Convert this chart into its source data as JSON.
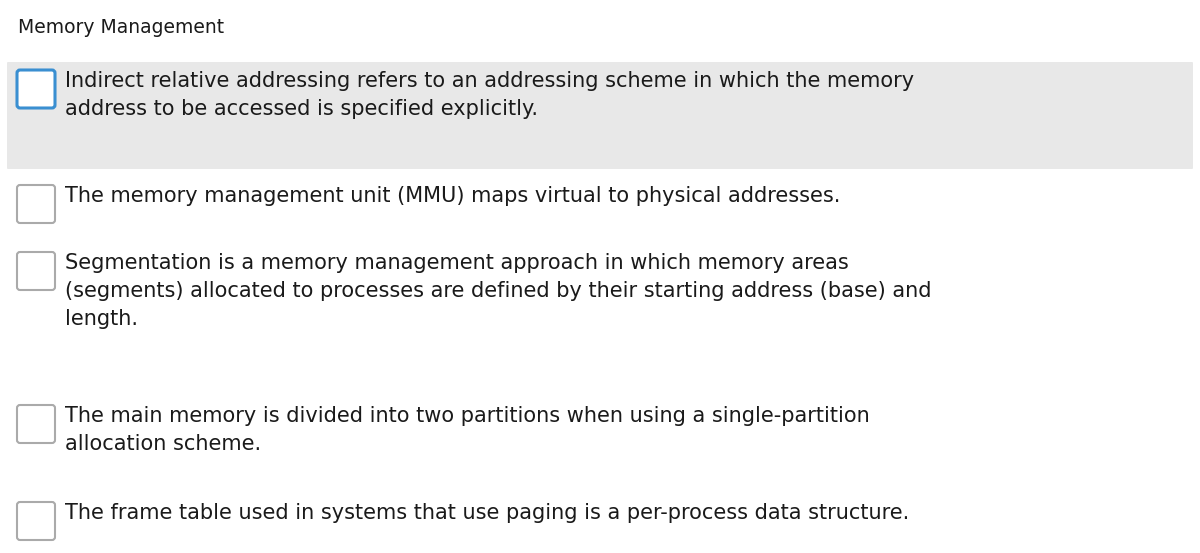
{
  "title": "Memory Management",
  "title_fontsize": 13.5,
  "background_color": "#ffffff",
  "items": [
    {
      "text": "Indirect relative addressing refers to an addressing scheme in which the memory\naddress to be accessed is specified explicitly.",
      "highlighted": true,
      "highlight_color": "#e8e8e8",
      "checkbox_border": "#3a8fd1",
      "num_lines": 2
    },
    {
      "text": "The memory management unit (MMU) maps virtual to physical addresses.",
      "highlighted": false,
      "highlight_color": "#ffffff",
      "checkbox_border": "#aaaaaa",
      "num_lines": 1
    },
    {
      "text": "Segmentation is a memory management approach in which memory areas\n(segments) allocated to processes are defined by their starting address (base) and\nlength.",
      "highlighted": false,
      "highlight_color": "#ffffff",
      "checkbox_border": "#aaaaaa",
      "num_lines": 3
    },
    {
      "text": "The main memory is divided into two partitions when using a single-partition\nallocation scheme.",
      "highlighted": false,
      "highlight_color": "#ffffff",
      "checkbox_border": "#aaaaaa",
      "num_lines": 2
    },
    {
      "text": "The frame table used in systems that use paging is a per-process data structure.",
      "highlighted": false,
      "highlight_color": "#ffffff",
      "checkbox_border": "#aaaaaa",
      "num_lines": 1
    }
  ],
  "text_fontsize": 15,
  "text_color": "#1a1a1a",
  "fig_width": 12.0,
  "fig_height": 5.53,
  "dpi": 100
}
